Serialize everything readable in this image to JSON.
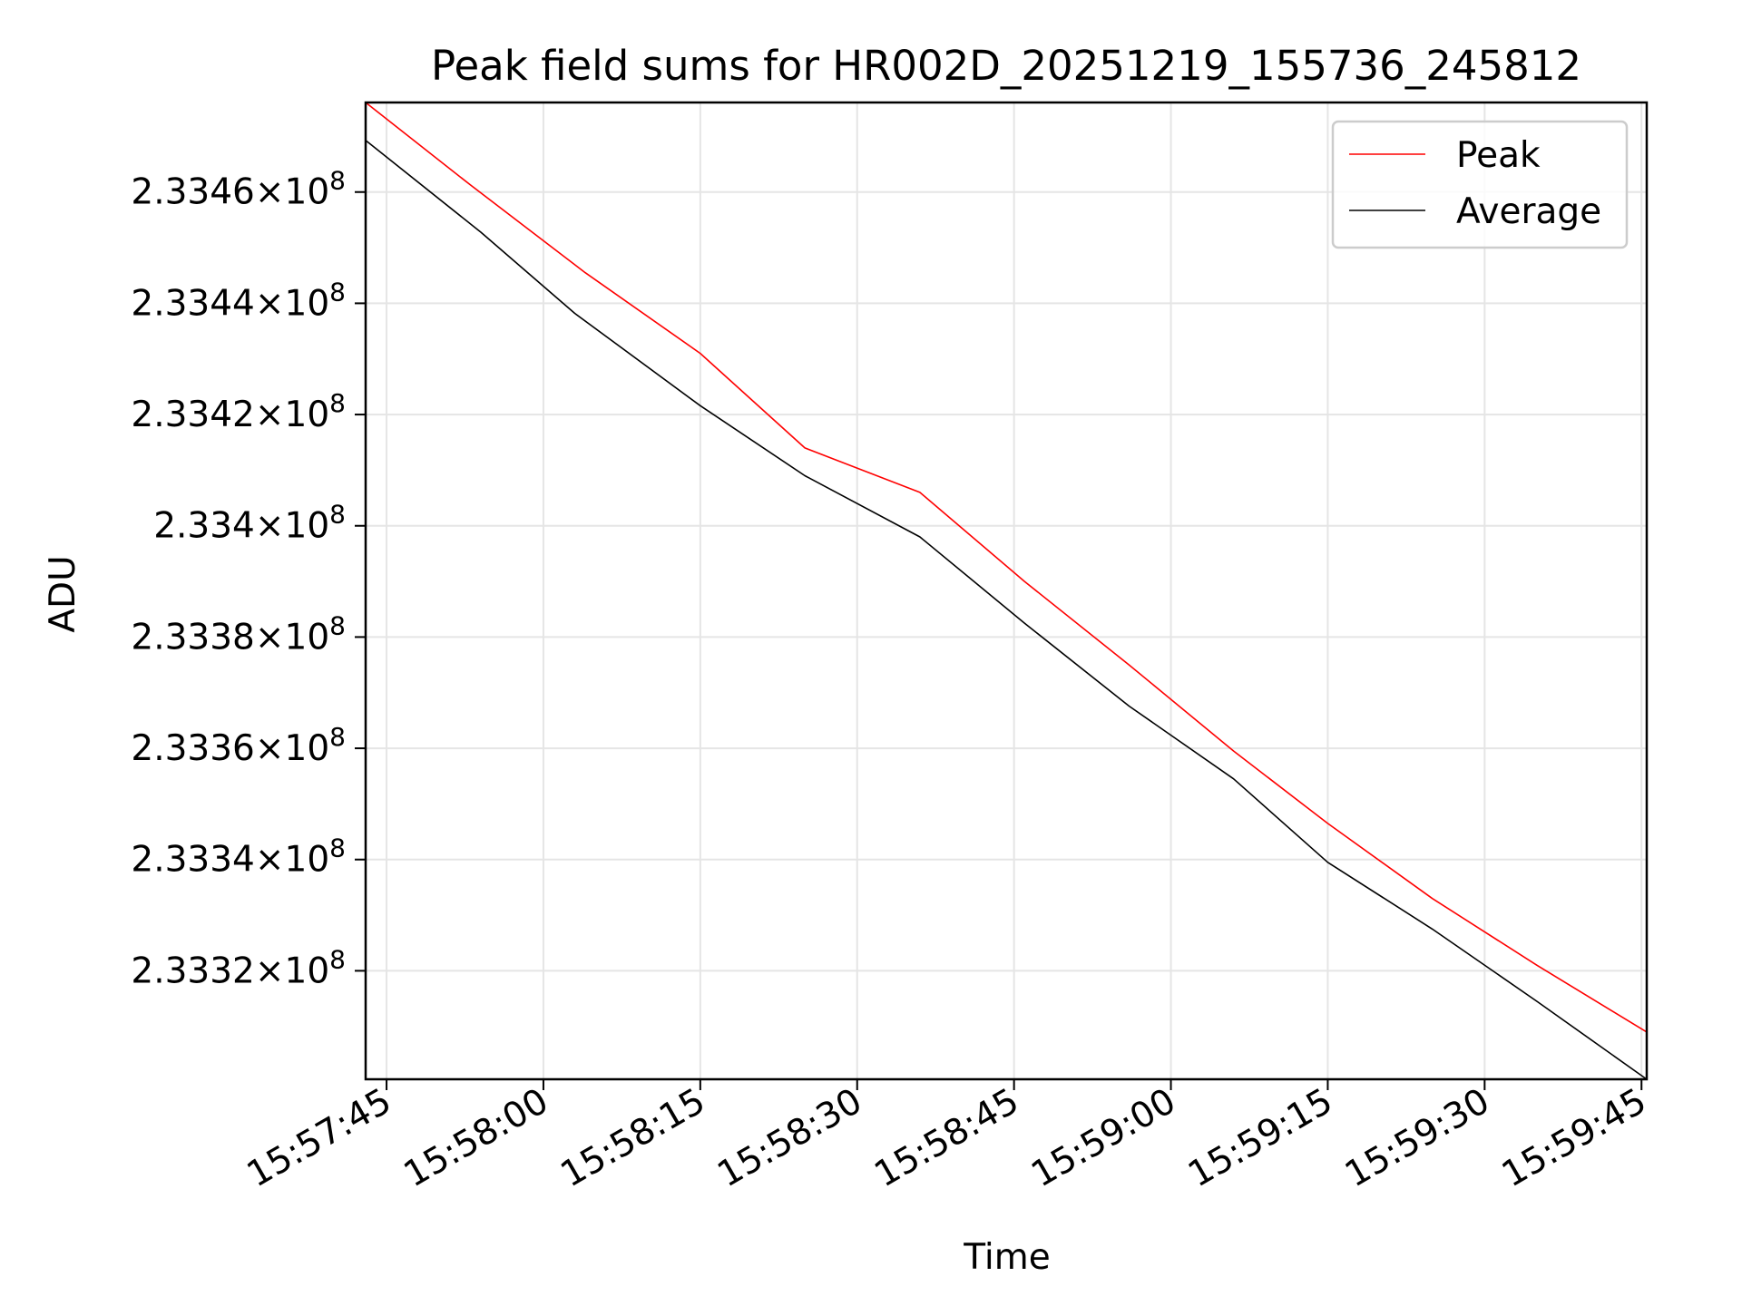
{
  "chart_data": {
    "type": "line",
    "title": "Peak field sums for HR002D_20251219_155736_245812",
    "xlabel": "Time",
    "ylabel": "ADU",
    "x_ticks": [
      "15:57:45",
      "15:58:00",
      "15:58:15",
      "15:58:30",
      "15:58:45",
      "15:59:00",
      "15:59:15",
      "15:59:30",
      "15:59:45"
    ],
    "x_tick_seconds": [
      0,
      15,
      30,
      45,
      60,
      75,
      90,
      105,
      120
    ],
    "xlim_seconds": [
      -2,
      120.5
    ],
    "y_tick_mantissas": [
      "2.3346",
      "2.3344",
      "2.3342",
      "2.334",
      "2.3338",
      "2.3336",
      "2.3334",
      "2.3332"
    ],
    "y_ticks": [
      233460000,
      233440000,
      233420000,
      233400000,
      233380000,
      233360000,
      233340000,
      233320000
    ],
    "y_exponent": "8",
    "ylim": [
      233300500,
      233476100
    ],
    "grid": true,
    "legend_position": "top-right",
    "series": [
      {
        "name": "Peak",
        "color": "#ff0000",
        "x": [
          -2,
          8,
          19,
          30,
          40,
          51,
          61,
          71,
          81,
          90,
          100,
          110,
          120.5
        ],
        "y": [
          233476100,
          233461300,
          233445500,
          233431000,
          233414000,
          233406000,
          233390000,
          233375000,
          233359500,
          233346500,
          233333000,
          233321000,
          233309000
        ]
      },
      {
        "name": "Average",
        "color": "#000000",
        "x": [
          -2,
          9,
          18,
          30,
          40,
          51,
          61,
          71,
          81,
          90,
          100,
          110,
          120.5
        ],
        "y": [
          233469300,
          233452800,
          233438200,
          233421600,
          233409000,
          233398000,
          233382500,
          233367600,
          233354500,
          233339500,
          233327500,
          233314500,
          233300500
        ]
      }
    ]
  }
}
